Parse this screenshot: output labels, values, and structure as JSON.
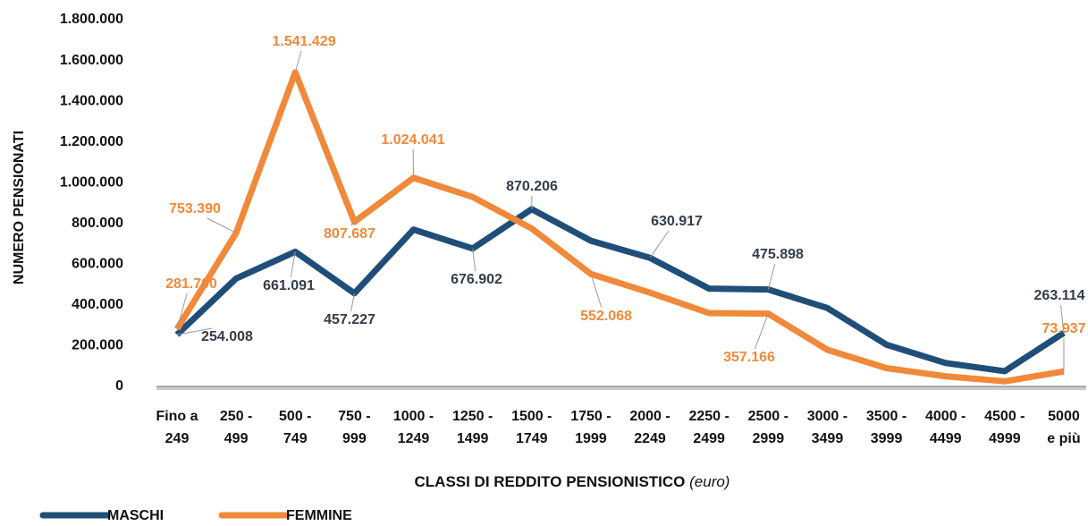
{
  "chart_data": {
    "type": "line",
    "y_label": "NUMERO PENSIONATI",
    "x_label": "CLASSI DI REDDITO PENSIONISTICO",
    "x_label_unit": "(euro)",
    "categories": [
      [
        "Fino a",
        "249"
      ],
      [
        "250 -",
        "499"
      ],
      [
        "500 -",
        "749"
      ],
      [
        "750 -",
        "999"
      ],
      [
        "1000 -",
        "1249"
      ],
      [
        "1250 -",
        "1499"
      ],
      [
        "1500 -",
        "1749"
      ],
      [
        "1750 -",
        "1999"
      ],
      [
        "2000 -",
        "2249"
      ],
      [
        "2250 -",
        "2499"
      ],
      [
        "2500 -",
        "2999"
      ],
      [
        "3000 -",
        "3499"
      ],
      [
        "3500 -",
        "3999"
      ],
      [
        "4000 -",
        "4499"
      ],
      [
        "4500 -",
        "4999"
      ],
      [
        "5000",
        "e più"
      ]
    ],
    "series": [
      {
        "name": "MASCHI",
        "color": "#1f4e79",
        "values": [
          254008,
          530000,
          661091,
          457227,
          770000,
          676902,
          870206,
          715000,
          630917,
          480000,
          475898,
          385000,
          205000,
          115000,
          75000,
          263114
        ],
        "value_labels": [
          "254.008",
          null,
          "661.091",
          "457.227",
          null,
          "676.902",
          "870.206",
          null,
          "630.917",
          null,
          "475.898",
          null,
          null,
          null,
          null,
          "263.114"
        ]
      },
      {
        "name": "FEMMINE",
        "color": "#f0893a",
        "values": [
          281700,
          753390,
          1541429,
          807687,
          1024041,
          930000,
          775000,
          552068,
          460000,
          360000,
          357166,
          180000,
          90000,
          50000,
          25000,
          73937
        ],
        "value_labels": [
          "281.700",
          "753.390",
          "1.541.429",
          "807.687",
          "1.024.041",
          null,
          null,
          "552.068",
          null,
          null,
          "357.166",
          null,
          null,
          null,
          null,
          "73.937"
        ]
      }
    ],
    "ylim": [
      0,
      1800000
    ],
    "yticks": [
      0,
      {
        "value": 200000,
        "label": "200.000"
      },
      {
        "value": 400000,
        "label": "400.000"
      },
      {
        "value": 600000,
        "label": "600.000"
      },
      {
        "value": 800000,
        "label": "800.000"
      },
      {
        "value": 1000000,
        "label": "1.000.000"
      },
      {
        "value": 1200000,
        "label": "1.200.000"
      },
      {
        "value": 1400000,
        "label": "1.400.000"
      },
      {
        "value": 1600000,
        "label": "1.600.000"
      },
      {
        "value": 1800000,
        "label": "1.800.000"
      }
    ],
    "grid": false,
    "legend": "bottom-left"
  }
}
